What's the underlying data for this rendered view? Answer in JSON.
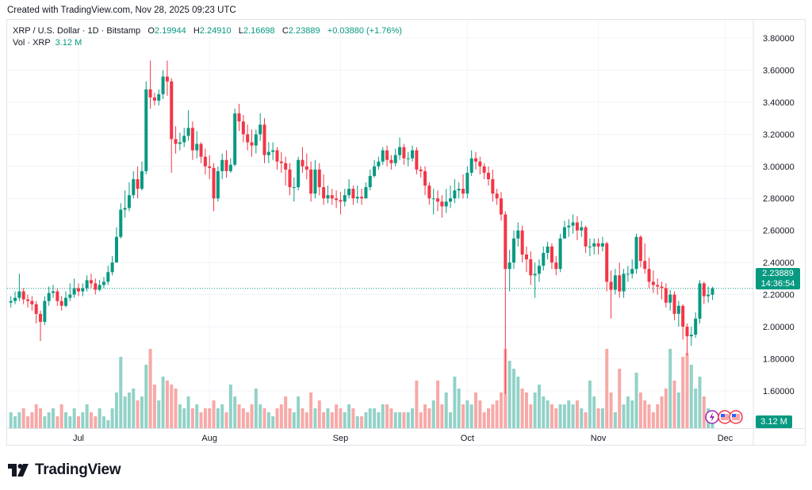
{
  "created": "Created with TradingView.com, Nov 28, 2025 09:23 UTC",
  "legend": {
    "symbol": "XRP / U.S. Dollar · 1D · Bitstamp",
    "o_label": "O",
    "o": "2.19944",
    "h_label": "H",
    "h": "2.24910",
    "l_label": "L",
    "l": "2.16698",
    "c_label": "C",
    "c": "2.23889",
    "change": "+0.03880 (+1.76%)",
    "vol_label": "Vol · XRP",
    "vol": "3.12 M"
  },
  "last_price_tag": {
    "price": "2.23889",
    "countdown": "14:36:54"
  },
  "volume_tag": "3.12 M",
  "logo": "TradingView",
  "colors": {
    "up": "#089981",
    "down": "#f23645",
    "up_volume": "#92d2c8",
    "down_volume": "#f7a9a7",
    "grid": "#f0f3fa"
  },
  "chart_data": {
    "type": "candlestick",
    "interval": "1D",
    "first_date": "Jun 15",
    "last_date": "Nov 28",
    "y_ticks": [
      "3.80000",
      "3.60000",
      "3.40000",
      "3.20000",
      "3.00000",
      "2.80000",
      "2.60000",
      "2.40000",
      "2.20000",
      "2.00000",
      "1.80000",
      "1.60000"
    ],
    "x_ticks": [
      {
        "label": "Jul",
        "day_index": 16
      },
      {
        "label": "Aug",
        "day_index": 47
      },
      {
        "label": "Sep",
        "day_index": 78
      },
      {
        "label": "Oct",
        "day_index": 108
      },
      {
        "label": "Nov",
        "day_index": 139
      },
      {
        "label": "Dec",
        "day_index": 169
      }
    ],
    "ylim": [
      1.5,
      3.9
    ],
    "first_open": 2.15,
    "close": [
      2.16,
      2.18,
      2.22,
      2.17,
      2.16,
      2.14,
      2.08,
      2.03,
      2.16,
      2.21,
      2.22,
      2.16,
      2.13,
      2.18,
      2.2,
      2.24,
      2.22,
      2.24,
      2.29,
      2.27,
      2.23,
      2.26,
      2.28,
      2.34,
      2.4,
      2.56,
      2.73,
      2.74,
      2.82,
      2.92,
      2.86,
      2.97,
      3.48,
      3.43,
      3.41,
      3.45,
      3.56,
      3.53,
      3.17,
      3.14,
      3.15,
      3.19,
      3.24,
      3.1,
      3.14,
      3.06,
      3.0,
      2.99,
      2.8,
      2.97,
      3.04,
      2.97,
      3.01,
      3.33,
      3.28,
      3.2,
      3.15,
      3.13,
      3.2,
      3.26,
      3.07,
      3.09,
      3.1,
      3.03,
      3.02,
      2.98,
      2.87,
      2.87,
      3.04,
      3.0,
      2.98,
      2.83,
      2.98,
      2.87,
      2.8,
      2.82,
      2.8,
      2.79,
      2.78,
      2.82,
      2.86,
      2.8,
      2.81,
      2.8,
      2.87,
      2.94,
      3.0,
      3.03,
      3.1,
      3.04,
      3.02,
      3.07,
      3.12,
      3.05,
      3.05,
      3.1,
      2.98,
      2.97,
      2.88,
      2.8,
      2.8,
      2.78,
      2.75,
      2.78,
      2.8,
      2.85,
      2.86,
      2.83,
      2.96,
      3.05,
      3.03,
      3.0,
      2.96,
      2.92,
      2.83,
      2.8,
      2.7,
      2.36,
      2.4,
      2.55,
      2.6,
      2.45,
      2.42,
      2.32,
      2.33,
      2.38,
      2.46,
      2.5,
      2.4,
      2.36,
      2.55,
      2.62,
      2.63,
      2.65,
      2.6,
      2.62,
      2.5,
      2.5,
      2.52,
      2.5,
      2.52,
      2.28,
      2.23,
      2.32,
      2.22,
      2.33,
      2.33,
      2.36,
      2.56,
      2.41,
      2.36,
      2.28,
      2.26,
      2.25,
      2.24,
      2.15,
      2.2,
      2.08,
      2.13,
      2.0,
      1.94,
      1.95,
      2.05,
      2.27,
      2.19,
      2.19944,
      2.23889
    ],
    "high": [
      2.19,
      2.22,
      2.33,
      2.24,
      2.2,
      2.19,
      2.16,
      2.1,
      2.19,
      2.25,
      2.26,
      2.24,
      2.19,
      2.22,
      2.27,
      2.3,
      2.27,
      2.27,
      2.32,
      2.33,
      2.3,
      2.29,
      2.31,
      2.38,
      2.44,
      2.62,
      2.77,
      2.85,
      2.9,
      2.97,
      3.0,
      3.03,
      3.53,
      3.66,
      3.46,
      3.48,
      3.6,
      3.66,
      3.55,
      3.25,
      3.21,
      3.24,
      3.35,
      3.28,
      3.22,
      3.15,
      3.11,
      3.07,
      3.02,
      3.0,
      3.08,
      3.1,
      3.05,
      3.36,
      3.39,
      3.32,
      3.26,
      3.23,
      3.23,
      3.33,
      3.3,
      3.15,
      3.15,
      3.12,
      3.09,
      3.06,
      3.02,
      2.93,
      3.06,
      3.12,
      3.08,
      3.03,
      3.04,
      3.02,
      2.95,
      2.88,
      2.86,
      2.85,
      2.84,
      2.86,
      2.92,
      2.88,
      2.88,
      2.86,
      2.9,
      2.98,
      3.04,
      3.06,
      3.12,
      3.13,
      3.07,
      3.11,
      3.18,
      3.14,
      3.09,
      3.13,
      3.12,
      3.0,
      3.0,
      2.9,
      2.86,
      2.85,
      2.82,
      2.86,
      2.88,
      2.92,
      2.9,
      2.95,
      3.0,
      3.1,
      3.09,
      3.06,
      3.02,
      3.0,
      2.98,
      2.86,
      2.84,
      2.72,
      2.48,
      2.6,
      2.65,
      2.63,
      2.5,
      2.47,
      2.4,
      2.42,
      2.5,
      2.53,
      2.52,
      2.44,
      2.58,
      2.66,
      2.67,
      2.7,
      2.69,
      2.66,
      2.63,
      2.55,
      2.55,
      2.55,
      2.56,
      2.53,
      2.35,
      2.36,
      2.4,
      2.36,
      2.38,
      2.42,
      2.58,
      2.57,
      2.52,
      2.43,
      2.35,
      2.3,
      2.28,
      2.27,
      2.23,
      2.22,
      2.16,
      2.14,
      2.02,
      2.0,
      2.09,
      2.29,
      2.28,
      2.25,
      2.2491
    ],
    "low": [
      2.12,
      2.14,
      2.16,
      2.14,
      2.12,
      2.1,
      2.02,
      1.91,
      2.01,
      2.13,
      2.18,
      2.13,
      2.1,
      2.12,
      2.16,
      2.18,
      2.19,
      2.19,
      2.22,
      2.24,
      2.2,
      2.22,
      2.24,
      2.26,
      2.32,
      2.4,
      2.55,
      2.68,
      2.72,
      2.8,
      2.8,
      2.85,
      2.95,
      3.36,
      3.38,
      3.38,
      3.42,
      3.44,
      2.96,
      3.08,
      3.1,
      3.12,
      3.16,
      3.04,
      3.05,
      3.02,
      2.95,
      2.92,
      2.72,
      2.78,
      2.92,
      2.93,
      2.96,
      3.0,
      3.22,
      3.15,
      3.1,
      3.06,
      3.08,
      3.16,
      3.02,
      3.02,
      3.04,
      2.98,
      2.96,
      2.88,
      2.82,
      2.78,
      2.85,
      2.96,
      2.92,
      2.78,
      2.8,
      2.82,
      2.76,
      2.77,
      2.76,
      2.74,
      2.7,
      2.75,
      2.8,
      2.76,
      2.77,
      2.76,
      2.8,
      2.85,
      2.93,
      2.98,
      3.01,
      3.0,
      2.98,
      3.0,
      3.04,
      3.01,
      3.0,
      3.03,
      2.95,
      2.93,
      2.82,
      2.76,
      2.7,
      2.72,
      2.68,
      2.71,
      2.74,
      2.77,
      2.8,
      2.8,
      2.8,
      2.94,
      2.98,
      2.95,
      2.92,
      2.88,
      2.78,
      2.76,
      2.66,
      1.58,
      2.22,
      2.36,
      2.5,
      2.4,
      2.34,
      2.26,
      2.18,
      2.28,
      2.35,
      2.42,
      2.36,
      2.32,
      2.34,
      2.55,
      2.56,
      2.58,
      2.54,
      2.56,
      2.46,
      2.44,
      2.45,
      2.45,
      2.47,
      2.22,
      2.05,
      2.2,
      2.18,
      2.18,
      2.28,
      2.3,
      2.33,
      2.37,
      2.33,
      2.24,
      2.21,
      2.2,
      2.17,
      2.12,
      2.1,
      2.04,
      2.0,
      1.92,
      1.82,
      1.88,
      1.93,
      2.02,
      2.14,
      2.15,
      2.16698
    ],
    "volume_millions": [
      4,
      3,
      4,
      5,
      3,
      4,
      6,
      5,
      3,
      4,
      5,
      3,
      6,
      4,
      3,
      5,
      3,
      4,
      6,
      4,
      3,
      5,
      3,
      2,
      5,
      9,
      18,
      8,
      9,
      10,
      7,
      8,
      16,
      20,
      11,
      7,
      13,
      12,
      11,
      10,
      6,
      5,
      8,
      5,
      6,
      4,
      5,
      5,
      7,
      5,
      6,
      4,
      11,
      8,
      6,
      5,
      4,
      6,
      10,
      6,
      5,
      4,
      3,
      5,
      6,
      8,
      5,
      4,
      8,
      5,
      4,
      9,
      5,
      7,
      4,
      5,
      4,
      6,
      5,
      4,
      6,
      5,
      3,
      3,
      4,
      5,
      5,
      4,
      6,
      6,
      5,
      4,
      4,
      4,
      4,
      5,
      12,
      4,
      6,
      5,
      7,
      12,
      6,
      9,
      4,
      13,
      10,
      6,
      7,
      6,
      9,
      7,
      4,
      5,
      6,
      7,
      9,
      20,
      17,
      15,
      13,
      10,
      9,
      6,
      9,
      11,
      8,
      7,
      6,
      5,
      6,
      6,
      7,
      6,
      7,
      5,
      4,
      12,
      8,
      5,
      5,
      20,
      9,
      4,
      15,
      6,
      8,
      7,
      14,
      9,
      7,
      6,
      4,
      6,
      8,
      10,
      20,
      12,
      9,
      18,
      19,
      16,
      10,
      13,
      8,
      5,
      3.12
    ]
  }
}
